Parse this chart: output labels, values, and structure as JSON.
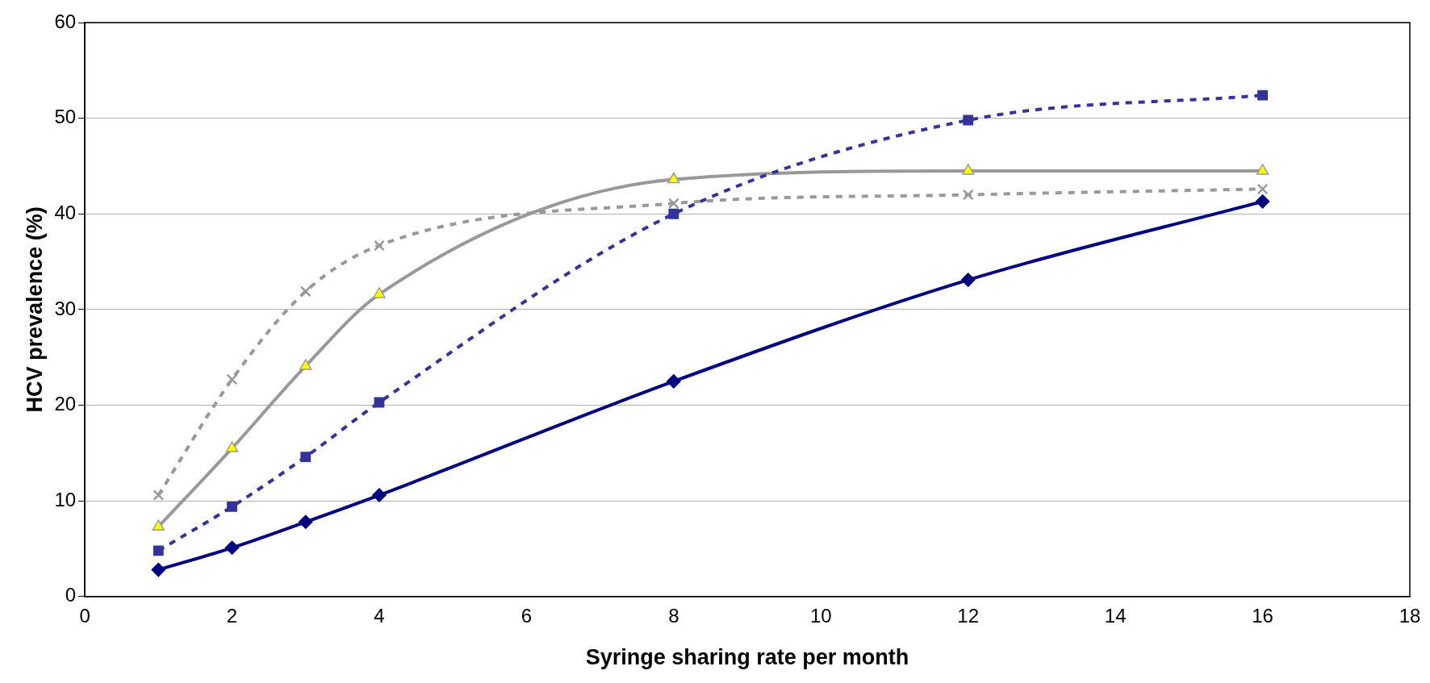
{
  "chart_data": {
    "type": "line",
    "xlabel": "Syringe sharing rate per month",
    "ylabel": "HCV prevalence (%)",
    "xlim": [
      0,
      18
    ],
    "xticks": [
      0,
      2,
      4,
      6,
      8,
      10,
      12,
      14,
      16,
      18
    ],
    "ylim": [
      0,
      60
    ],
    "yticks": [
      0,
      10,
      20,
      30,
      40,
      50,
      60
    ],
    "grid": "y",
    "legend": false,
    "series": [
      {
        "color": "#000080",
        "marker": "diamond",
        "line_style": "solid",
        "x": [
          1,
          2,
          3,
          4,
          8,
          12,
          16
        ],
        "values": [
          2.8,
          5.1,
          7.8,
          10.6,
          22.5,
          33.1,
          41.3
        ]
      },
      {
        "color": "#333399",
        "marker": "square",
        "line_style": "dashed",
        "x": [
          1,
          2,
          3,
          4,
          8,
          12,
          16
        ],
        "values": [
          4.8,
          9.4,
          14.6,
          20.3,
          40.0,
          49.8,
          52.4
        ]
      },
      {
        "color": "#999999",
        "colors": [
          "#ffff00",
          "#ffff00",
          "#ffff00",
          "#ffff00",
          "#ffff00",
          "#ffff00",
          "#ffff00"
        ],
        "marker": "triangle",
        "line_style": "solid",
        "x": [
          1,
          2,
          3,
          4,
          8,
          12,
          16
        ],
        "values": [
          7.3,
          15.5,
          24.1,
          31.6,
          43.6,
          44.5,
          44.5
        ]
      },
      {
        "color": "#999999",
        "marker": "cross",
        "line_style": "dashed",
        "x": [
          1,
          2,
          3,
          4,
          8,
          12,
          16
        ],
        "values": [
          10.6,
          22.7,
          31.9,
          36.7,
          41.1,
          42.0,
          42.6
        ]
      }
    ]
  }
}
